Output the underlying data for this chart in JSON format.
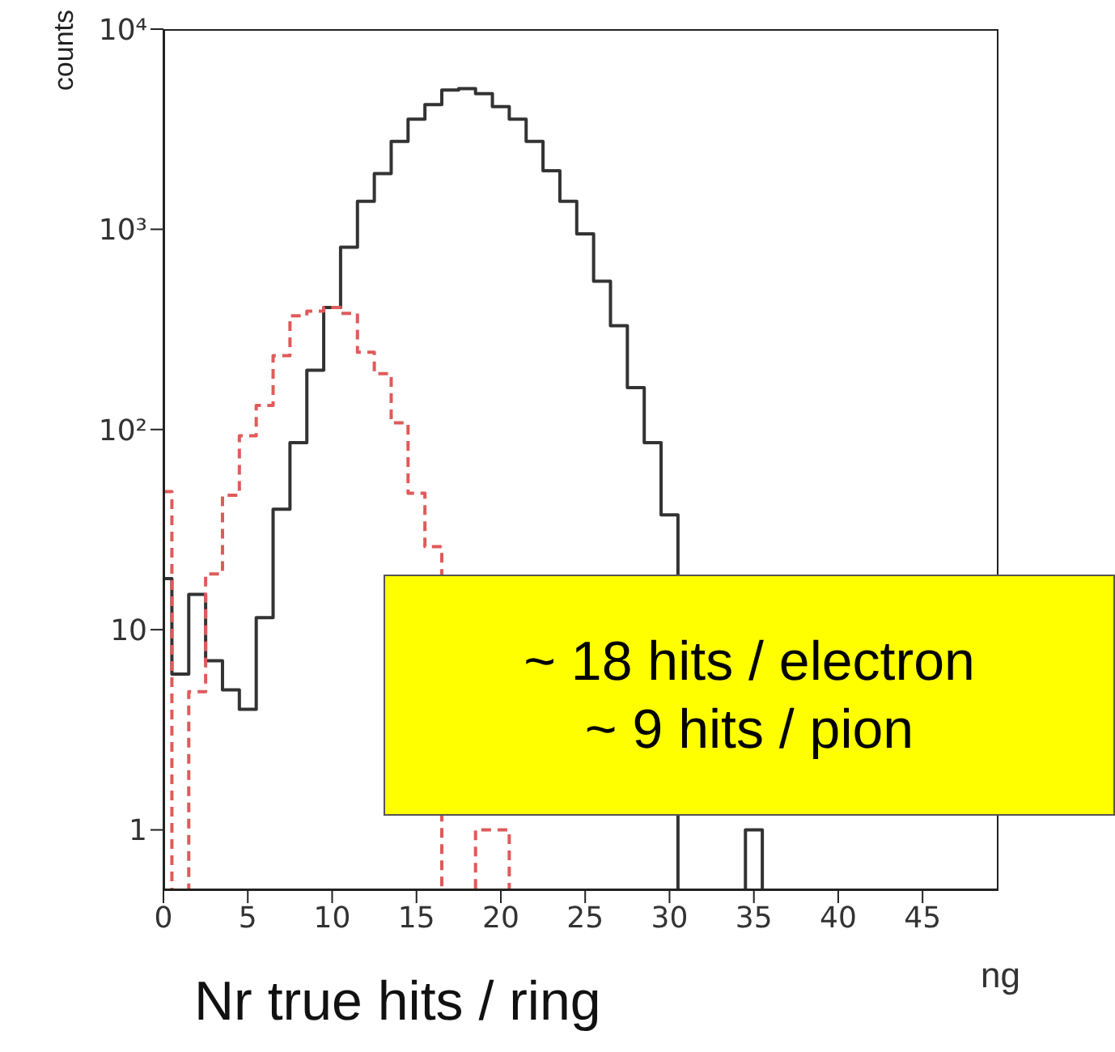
{
  "chart_data": {
    "type": "histogram",
    "ylabel": "counts",
    "xlabel": "Nr true hits / ring",
    "bins": [
      0,
      0.5,
      1.5,
      2.5,
      3.5,
      4.5,
      5.5,
      6.5,
      7.5,
      8.5,
      9.5,
      10.5,
      11.5,
      12.5,
      13.5,
      14.5,
      15.5,
      16.5,
      17.5,
      18.5,
      19.5,
      20.5,
      21.5,
      22.5,
      23.5,
      24.5,
      25.5,
      26.5,
      27.5,
      28.5,
      29.5,
      30.5,
      31.5,
      32.5,
      33.5,
      34.5,
      35.5
    ],
    "series": [
      {
        "color": "#333333",
        "line_style": "solid",
        "values": [
          18,
          6,
          15,
          7,
          5,
          4,
          11.5,
          40,
          86,
          198,
          407,
          813,
          1380,
          1900,
          2750,
          3550,
          4200,
          4960,
          5050,
          4760,
          4100,
          3550,
          2750,
          1960,
          1380,
          950,
          550,
          330,
          162,
          86,
          37.5,
          null,
          null,
          null,
          null,
          1
        ]
      },
      {
        "color": "#e05a5a",
        "line_style": "dashed",
        "values": [
          49,
          null,
          4.9,
          19,
          47,
          93,
          132,
          234,
          370,
          390,
          407,
          380,
          243,
          190,
          108,
          48,
          26,
          null,
          null,
          1,
          1,
          null,
          null,
          null,
          null,
          null,
          null,
          null,
          null,
          null,
          null,
          null,
          null,
          null,
          null,
          null
        ]
      }
    ],
    "log": "y",
    "xlim": [
      0,
      49.5
    ],
    "xticks": [
      0,
      5,
      10,
      15,
      20,
      25,
      30,
      35,
      40,
      45
    ],
    "ylim": [
      0.5,
      10000
    ],
    "yticks": [
      1,
      10,
      {
        "value": 100,
        "label": "10²"
      },
      {
        "value": 1000,
        "label": "10³"
      },
      {
        "value": 10000,
        "label": "10⁴"
      }
    ],
    "annotations": [
      "~ 18 hits / electron\n~ 9 hits / pion",
      "ng"
    ]
  }
}
